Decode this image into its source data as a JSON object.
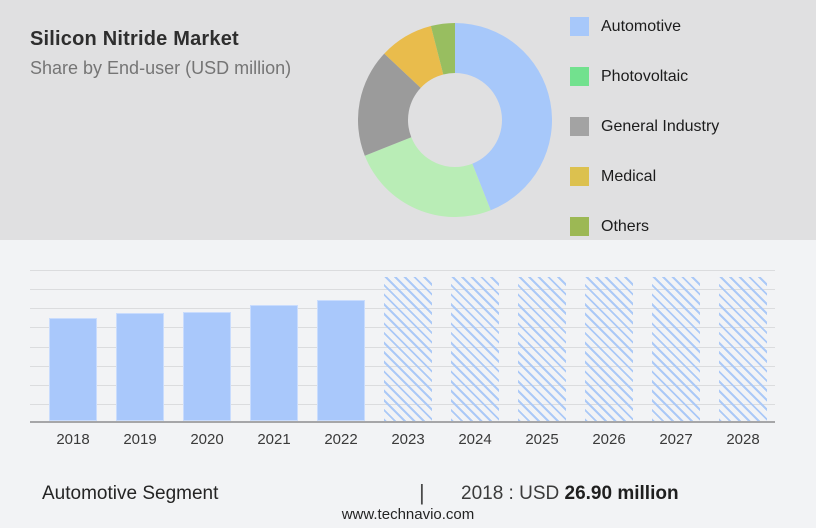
{
  "header": {
    "title": "Silicon Nitride Market",
    "subtitle": "Share by End-user (USD million)"
  },
  "legend": {
    "items": [
      {
        "label": "Automotive",
        "color": "#A7C8FA"
      },
      {
        "label": "Photovoltaic",
        "color": "#72E18E"
      },
      {
        "label": "General Industry",
        "color": "#A3A3A3"
      },
      {
        "label": "Medical",
        "color": "#DCC14F"
      },
      {
        "label": "Others",
        "color": "#9CB854"
      }
    ]
  },
  "chart_data": [
    {
      "type": "pie",
      "subtype": "donut",
      "title": "Share by End-user (USD million)",
      "labels": [
        "Automotive",
        "Photovoltaic",
        "General Industry",
        "Medical",
        "Others"
      ],
      "values": [
        44,
        25,
        18,
        9,
        4
      ],
      "units": "percent, estimated from arc angles (no numeric labels shown)",
      "colors": [
        "#A7C8FA",
        "#B9EDB6",
        "#9B9B9B",
        "#E9BC4C",
        "#98BE60"
      ],
      "legend_position": "right",
      "start_angle_deg": 0,
      "direction": "clockwise"
    },
    {
      "type": "bar",
      "categories": [
        "2018",
        "2019",
        "2020",
        "2021",
        "2022",
        "2023",
        "2024",
        "2025",
        "2026",
        "2027",
        "2028"
      ],
      "values": [
        26.9,
        28.2,
        28.5,
        30.3,
        31.6,
        37.6,
        37.6,
        37.6,
        37.6,
        37.6,
        37.6
      ],
      "historic_years": [
        "2018",
        "2019",
        "2020",
        "2021",
        "2022"
      ],
      "forecast_hatched_years": [
        "2023",
        "2024",
        "2025",
        "2026",
        "2027",
        "2028"
      ],
      "note": "Only 2018 value labeled (USD 26.90 million); other values estimated from bar heights. Forecast bars are equal-height hatched placeholders.",
      "known_value": {
        "year": "2018",
        "value": "USD 26.90 million"
      },
      "bar_color": "#A9C8FB",
      "ylim": [
        0,
        40
      ],
      "grid": true,
      "xlabel": "",
      "ylabel": ""
    }
  ],
  "caption": {
    "segment": "Automotive Segment",
    "divider": "|",
    "stat_prefix": "2018 : USD",
    "stat_value": "26.90 million"
  },
  "footer": {
    "url": "www.technavio.com"
  }
}
